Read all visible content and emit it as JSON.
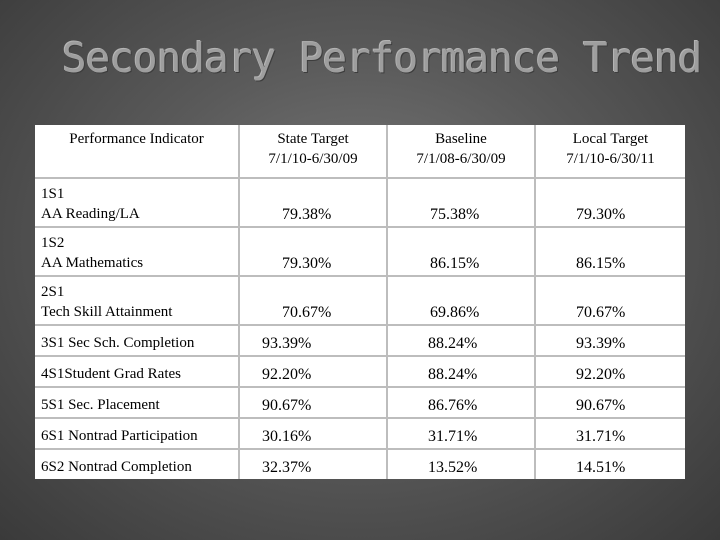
{
  "title": "Secondary Performance Trend",
  "table": {
    "headers": [
      [
        "Performance Indicator"
      ],
      [
        "State Target",
        "7/1/10-6/30/09"
      ],
      [
        "Baseline",
        "7/1/08-6/30/09"
      ],
      [
        "Local Target",
        "7/1/10-6/30/11"
      ]
    ],
    "rows": [
      {
        "code": "1S1",
        "label": "AA Reading/LA",
        "state": "79.38%",
        "baseline": "75.38%",
        "local": "79.30%"
      },
      {
        "code": "1S2",
        "label": "AA Mathematics",
        "state": "79.30%",
        "baseline": "86.15%",
        "local": "86.15%"
      },
      {
        "code": "2S1",
        "label": "Tech Skill Attainment",
        "state": "70.67%",
        "baseline": "69.86%",
        "local": "70.67%"
      },
      {
        "code": "",
        "label": "3S1 Sec Sch. Completion",
        "state": "93.39%",
        "baseline": "88.24%",
        "local": "93.39%"
      },
      {
        "code": "",
        "label": "4S1Student Grad Rates",
        "state": "92.20%",
        "baseline": "88.24%",
        "local": "92.20%"
      },
      {
        "code": "",
        "label": "5S1 Sec. Placement",
        "state": "90.67%",
        "baseline": "86.76%",
        "local": "90.67%"
      },
      {
        "code": "",
        "label": "6S1 Nontrad Participation",
        "state": "30.16%",
        "baseline": "31.71%",
        "local": "31.71%"
      },
      {
        "code": "",
        "label": "6S2 Nontrad Completion",
        "state": "32.37%",
        "baseline": "13.52%",
        "local": "14.51%"
      }
    ]
  }
}
